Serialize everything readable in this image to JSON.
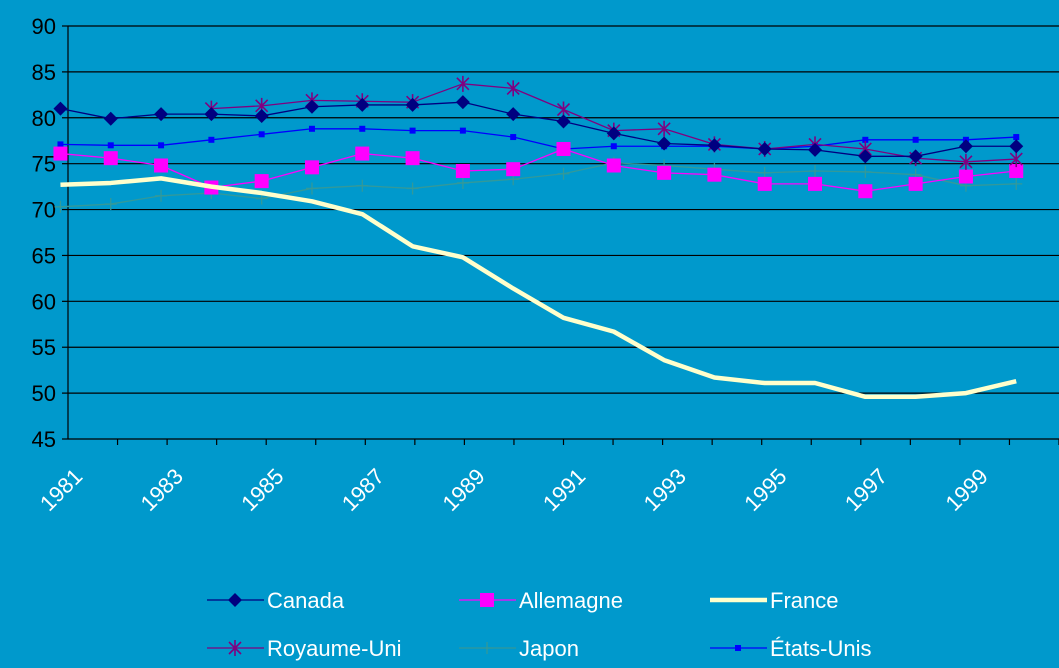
{
  "chart_data": {
    "type": "line",
    "title": "",
    "xlabel": "",
    "ylabel": "",
    "ylim": [
      45,
      90
    ],
    "yticks": [
      45,
      50,
      55,
      60,
      65,
      70,
      75,
      80,
      85,
      90
    ],
    "x": [
      1981,
      1982,
      1983,
      1984,
      1985,
      1986,
      1987,
      1988,
      1989,
      1990,
      1991,
      1992,
      1993,
      1994,
      1995,
      1996,
      1997,
      1998,
      1999,
      2000
    ],
    "xtick_labels": [
      "1981",
      "1983",
      "1985",
      "1987",
      "1989",
      "1991",
      "1993",
      "1995",
      "1997",
      "1999"
    ],
    "grid": "horizontal",
    "legend_position": "bottom",
    "series": [
      {
        "name": "Canada",
        "color": "#000080",
        "marker": "diamond",
        "values": [
          81.0,
          79.9,
          80.4,
          80.4,
          80.2,
          81.2,
          81.4,
          81.4,
          81.7,
          80.4,
          79.6,
          78.3,
          77.2,
          77.0,
          76.6,
          76.5,
          75.8,
          75.8,
          76.9,
          76.9
        ]
      },
      {
        "name": "Allemagne",
        "color": "#FF00FF",
        "marker": "square",
        "values": [
          76.1,
          75.6,
          74.8,
          72.4,
          73.1,
          74.6,
          76.1,
          75.6,
          74.2,
          74.4,
          76.6,
          74.8,
          74.0,
          73.8,
          72.8,
          72.8,
          72.0,
          72.8,
          73.6,
          74.2
        ]
      },
      {
        "name": "France",
        "color": "#FFFFCC",
        "marker": "none",
        "values": [
          72.7,
          72.9,
          73.4,
          72.5,
          71.8,
          70.9,
          69.5,
          66.0,
          64.8,
          61.4,
          58.2,
          56.7,
          53.6,
          51.7,
          51.1,
          51.1,
          49.6,
          49.6,
          50.0,
          51.3
        ]
      },
      {
        "name": "Royaume-Uni",
        "color": "#800080",
        "marker": "star",
        "values": [
          null,
          null,
          null,
          81.0,
          81.3,
          81.9,
          81.8,
          81.7,
          83.7,
          83.2,
          80.9,
          78.6,
          78.8,
          77.1,
          76.6,
          77.1,
          76.6,
          75.6,
          75.2,
          75.5
        ]
      },
      {
        "name": "Japon",
        "color": "#339999",
        "marker": "plus",
        "values": [
          70.3,
          70.6,
          71.5,
          71.8,
          71.2,
          72.3,
          72.6,
          72.3,
          72.9,
          73.3,
          73.9,
          75.1,
          74.8,
          74.4,
          74.0,
          74.2,
          74.1,
          73.8,
          72.6,
          72.8
        ]
      },
      {
        "name": "États-Unis",
        "color": "#0000FF",
        "marker": "smallsquare",
        "values": [
          77.1,
          77.0,
          77.0,
          77.6,
          78.2,
          78.8,
          78.8,
          78.6,
          78.6,
          77.9,
          76.6,
          76.9,
          76.9,
          76.9,
          76.6,
          76.9,
          77.6,
          77.6,
          77.6,
          77.9
        ]
      }
    ]
  }
}
